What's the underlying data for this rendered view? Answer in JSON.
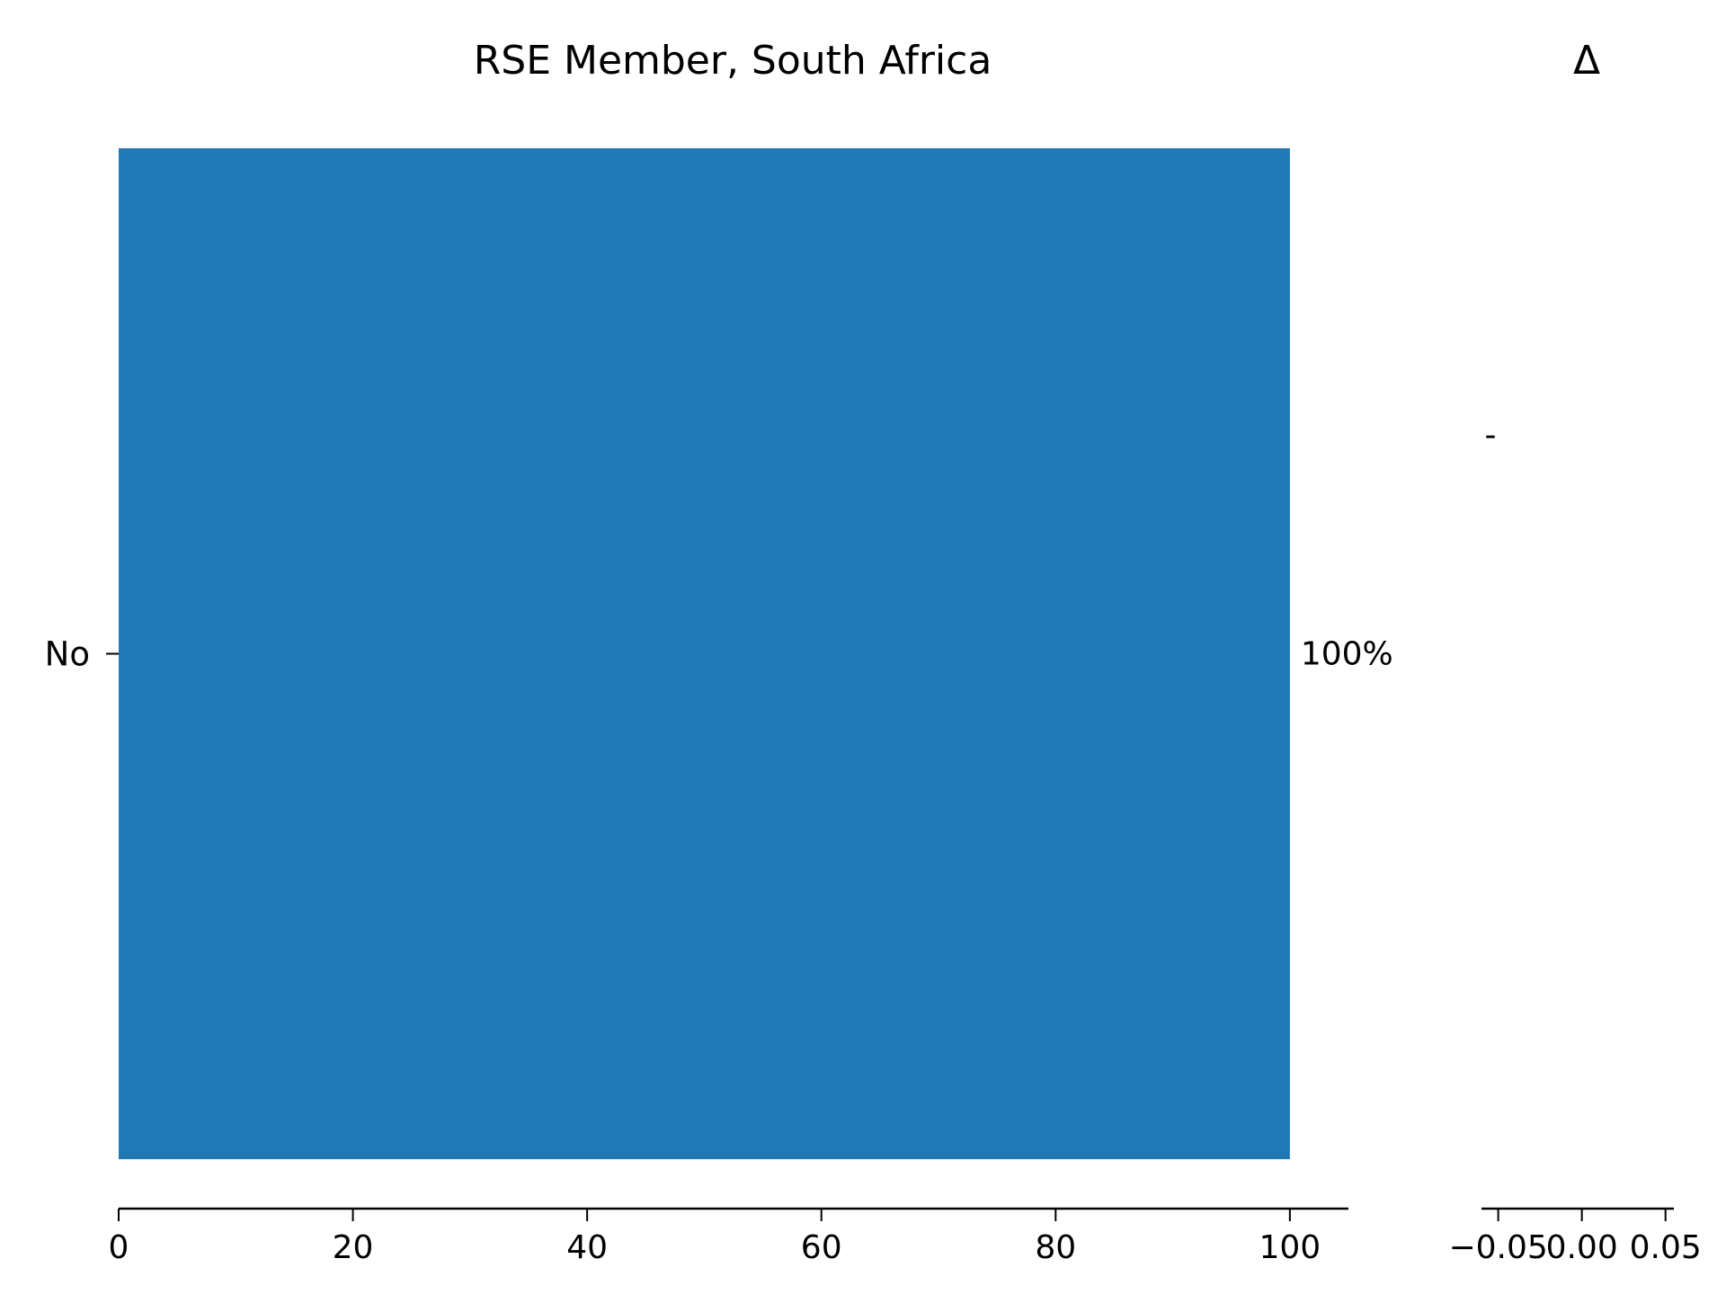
{
  "chart_data": [
    {
      "type": "bar",
      "orientation": "horizontal",
      "title": "RSE Member, South Africa",
      "categories": [
        "No"
      ],
      "values": [
        100
      ],
      "data_labels": [
        "100%"
      ],
      "xlim": [
        0,
        105
      ],
      "xticks": [
        0,
        20,
        40,
        60,
        80,
        100
      ],
      "xlabel": "",
      "ylabel": "",
      "grid": false,
      "bar_color": "#2078b4"
    },
    {
      "type": "bar",
      "orientation": "horizontal",
      "title": "Δ",
      "categories": [
        "No"
      ],
      "values": [
        0
      ],
      "data_labels": [
        "-"
      ],
      "xlim": [
        -0.06,
        0.055
      ],
      "xticks": [
        -0.05,
        0.0,
        0.05
      ],
      "xtick_labels": [
        "−0.05",
        "0.00",
        "0.05"
      ],
      "xlabel": "",
      "ylabel": "",
      "grid": false
    }
  ]
}
